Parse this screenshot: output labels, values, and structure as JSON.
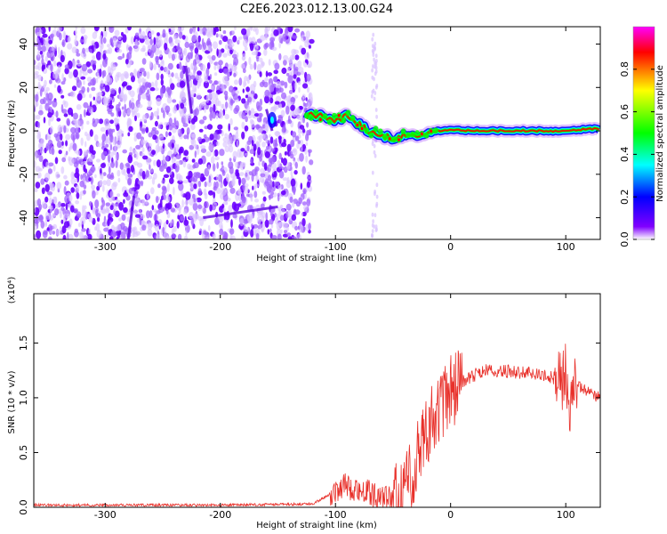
{
  "title": "C2E6.2023.012.13.00.G24",
  "chart_data": [
    {
      "type": "heatmap",
      "xlabel": "Height of straight line (km)",
      "ylabel": "Frequency (Hz)",
      "xlim": [
        -362,
        130
      ],
      "ylim": [
        -50,
        48
      ],
      "xticks": [
        -300,
        -200,
        -100,
        0,
        100
      ],
      "yticks": [
        -40,
        -20,
        0,
        20,
        40
      ],
      "colorbar": {
        "label": "Normalized spectral amplitude",
        "range": [
          0,
          1
        ],
        "ticks": [
          "0.0",
          "0.2",
          "0.4",
          "0.6",
          "0.8"
        ],
        "colormap": [
          "#ffffff",
          "#8000ff",
          "#0000ff",
          "#00ffff",
          "#00ff00",
          "#ffff00",
          "#ff0000",
          "#ff00ff"
        ]
      },
      "noise_region_x": [
        -362,
        -122
      ],
      "signal_track": [
        {
          "x": -125,
          "y": 7
        },
        {
          "x": -110,
          "y": 7
        },
        {
          "x": -100,
          "y": 5
        },
        {
          "x": -90,
          "y": 7
        },
        {
          "x": -80,
          "y": 3
        },
        {
          "x": -70,
          "y": 0
        },
        {
          "x": -60,
          "y": -2
        },
        {
          "x": -50,
          "y": -3
        },
        {
          "x": -40,
          "y": -2
        },
        {
          "x": -30,
          "y": -3
        },
        {
          "x": -20,
          "y": -1
        },
        {
          "x": -10,
          "y": 0
        },
        {
          "x": 0,
          "y": 0.5
        },
        {
          "x": 20,
          "y": 0
        },
        {
          "x": 50,
          "y": 0
        },
        {
          "x": 90,
          "y": 0
        },
        {
          "x": 100,
          "y": 0.3
        },
        {
          "x": 130,
          "y": 1
        }
      ]
    },
    {
      "type": "line",
      "xlabel": "Height of straight line (km)",
      "ylabel": "SNR (10 * v/v)",
      "multiplier": "(x10⁴)",
      "xlim": [
        -362,
        130
      ],
      "ylim": [
        0,
        1.95
      ],
      "xticks": [
        -300,
        -200,
        -100,
        0,
        100
      ],
      "yticks": [
        "0.0",
        "0.5",
        "1.0",
        "1.5"
      ],
      "color": "#e8302a",
      "series": [
        {
          "x": [
            -362,
            -300,
            -200,
            -120,
            -105,
            -95,
            -85,
            -75,
            -65,
            -55,
            -45,
            -35,
            -30,
            -25,
            -20,
            -15,
            -10,
            -5,
            0,
            5,
            10,
            20,
            30,
            40,
            50,
            60,
            70,
            80,
            90,
            95,
            100,
            103,
            106,
            110,
            115,
            120,
            125,
            130
          ],
          "values": [
            0.02,
            0.02,
            0.02,
            0.03,
            0.12,
            0.2,
            0.18,
            0.15,
            0.1,
            0.08,
            0.06,
            0.25,
            0.45,
            0.62,
            0.75,
            0.82,
            0.9,
            0.95,
            1.05,
            1.12,
            1.15,
            1.2,
            1.25,
            1.25,
            1.24,
            1.23,
            1.22,
            1.2,
            1.18,
            1.15,
            1.2,
            0.75,
            1.15,
            1.12,
            1.08,
            1.05,
            1.02,
            1.0
          ]
        }
      ]
    }
  ]
}
